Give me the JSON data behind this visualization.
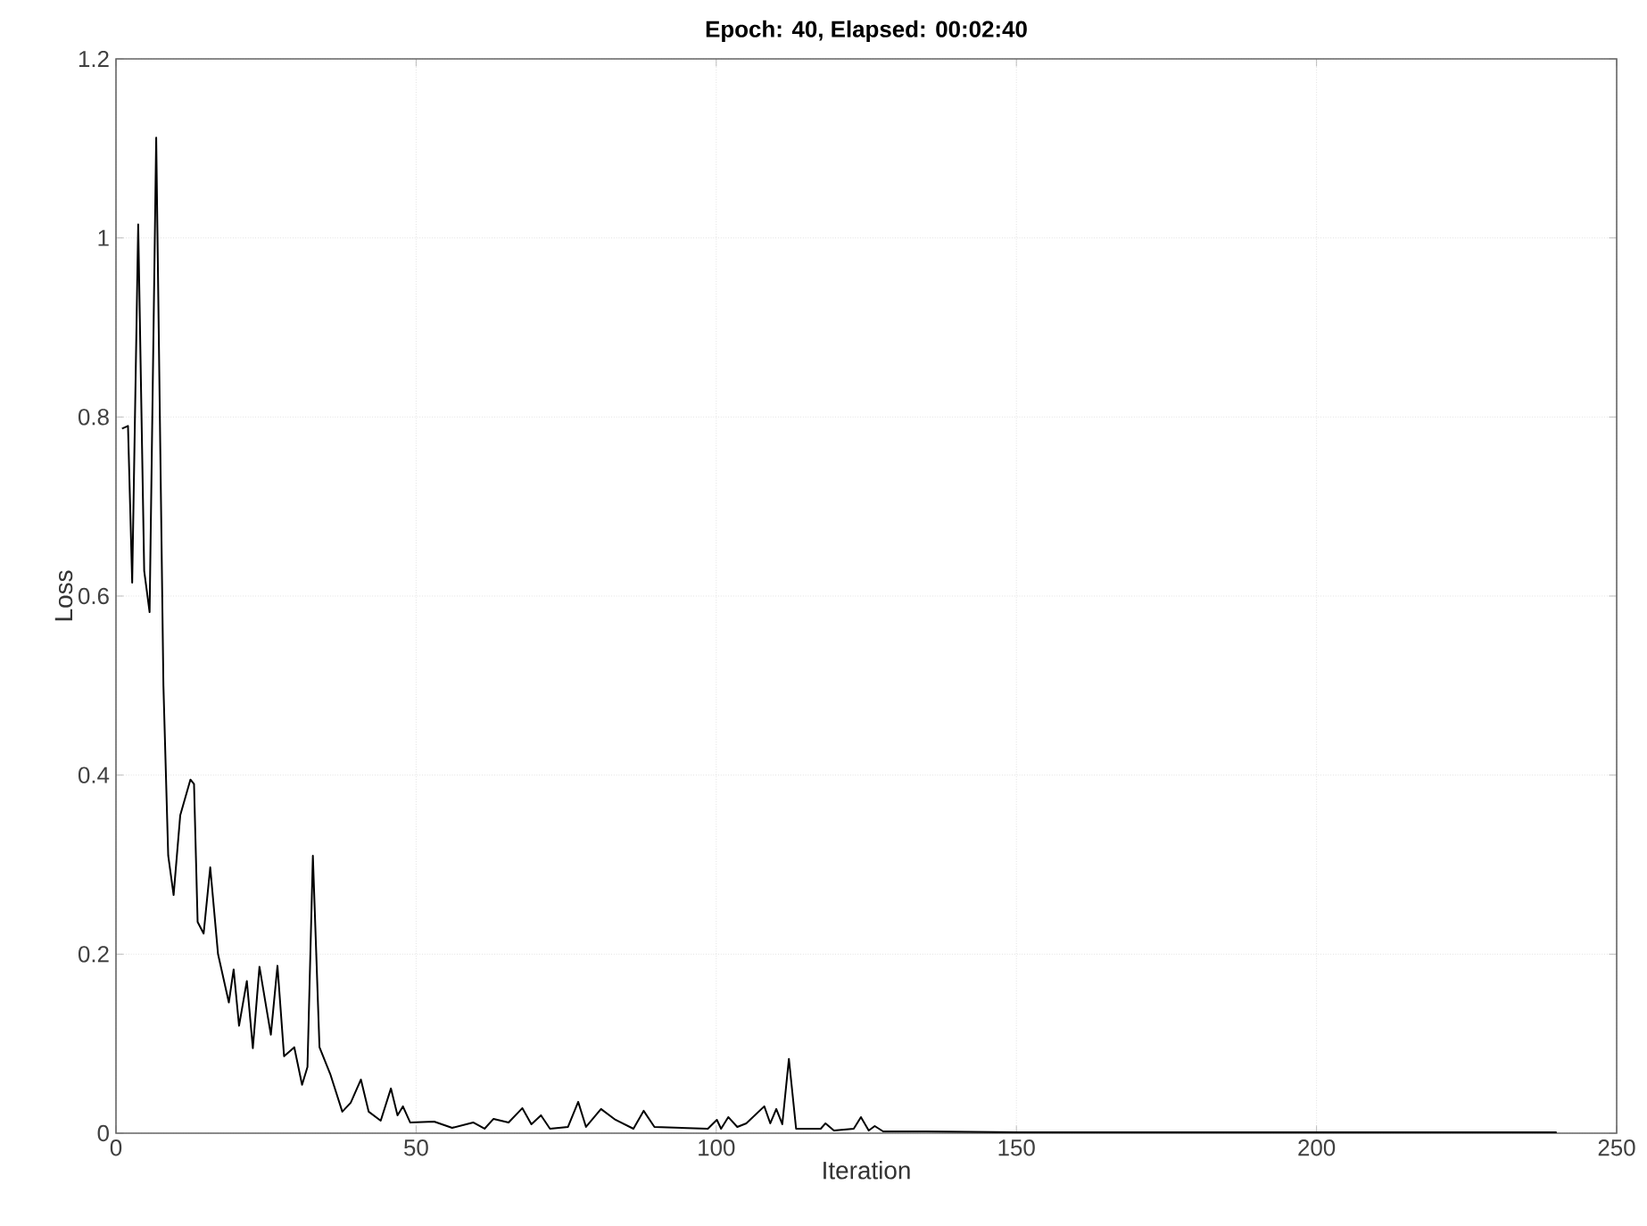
{
  "chart_data": {
    "type": "line",
    "title": "Epoch: 40, Elapsed: 00:02:40",
    "xlabel": "Iteration",
    "ylabel": "Loss",
    "x": [
      1,
      2,
      2.7,
      3.7,
      4.7,
      5.6,
      6.7,
      7.9,
      8.7,
      9.6,
      10.7,
      12.4,
      13,
      13.6,
      14.6,
      15.7,
      17,
      18.8,
      19.6,
      20.5,
      21.8,
      22.8,
      23.9,
      25.8,
      26.9,
      28,
      29.7,
      31,
      31.9,
      32.8,
      33.9,
      35.7,
      37.7,
      39.1,
      40.8,
      42.1,
      44.1,
      45.8,
      46.9,
      47.8,
      49,
      53,
      56,
      59.5,
      61.4,
      62.9,
      65.4,
      67.7,
      69.2,
      70.8,
      72.3,
      75.3,
      77,
      78.3,
      80.8,
      83.2,
      86.2,
      87.9,
      89.7,
      98.6,
      100.1,
      100.8,
      102,
      103.5,
      105,
      108,
      109,
      110,
      111,
      112.1,
      113.3,
      117.4,
      118.2,
      119.6,
      122.9,
      124.1,
      125.4,
      126.4,
      127.8,
      135,
      150,
      170,
      190,
      210,
      225,
      240
    ],
    "values": [
      0.787,
      0.79,
      0.615,
      1.015,
      0.628,
      0.582,
      1.112,
      0.5,
      0.31,
      0.266,
      0.355,
      0.395,
      0.39,
      0.236,
      0.223,
      0.297,
      0.2,
      0.146,
      0.183,
      0.12,
      0.17,
      0.095,
      0.186,
      0.11,
      0.187,
      0.086,
      0.096,
      0.054,
      0.074,
      0.31,
      0.096,
      0.066,
      0.024,
      0.034,
      0.06,
      0.024,
      0.014,
      0.05,
      0.02,
      0.03,
      0.012,
      0.013,
      0.006,
      0.012,
      0.005,
      0.016,
      0.012,
      0.028,
      0.01,
      0.02,
      0.005,
      0.007,
      0.035,
      0.007,
      0.027,
      0.015,
      0.005,
      0.025,
      0.007,
      0.005,
      0.015,
      0.005,
      0.018,
      0.007,
      0.011,
      0.03,
      0.011,
      0.027,
      0.01,
      0.083,
      0.005,
      0.005,
      0.011,
      0.003,
      0.005,
      0.018,
      0.003,
      0.008,
      0.002,
      0.002,
      0.001,
      0.001,
      0.001,
      0.001,
      0.001,
      0.001
    ],
    "color": "#000000",
    "marker": "none",
    "line_style": "solid",
    "xlim": [
      0,
      250
    ],
    "ylim": [
      0,
      1.2
    ],
    "xticks": [
      0,
      50,
      100,
      150,
      200,
      250
    ],
    "yticks": [
      0,
      0.2,
      0.4,
      0.6,
      0.8,
      1,
      1.2
    ],
    "grid": true
  }
}
